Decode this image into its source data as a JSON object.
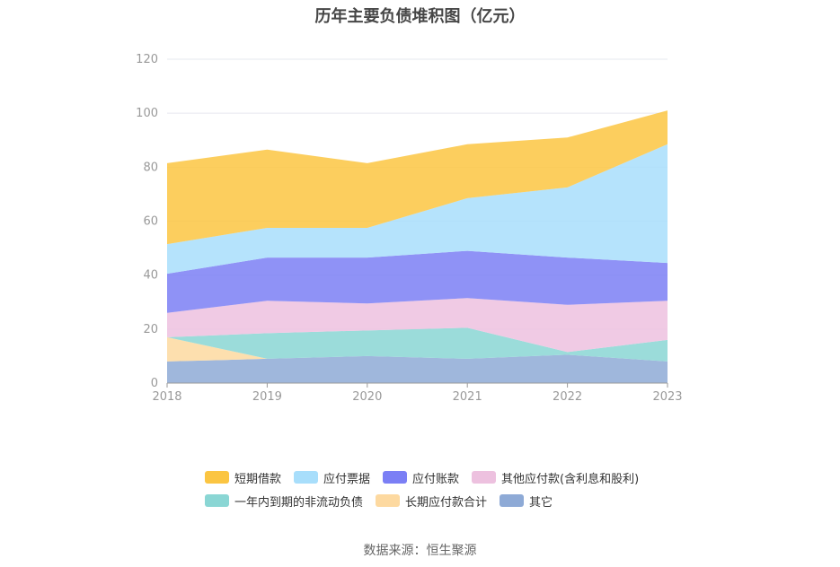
{
  "chart_data": {
    "type": "area",
    "stacked": true,
    "title": "历年主要负债堆积图（亿元）",
    "source": "数据来源：恒生聚源",
    "x": [
      "2018",
      "2019",
      "2020",
      "2021",
      "2022",
      "2023"
    ],
    "ylim": [
      0,
      120
    ],
    "yticks": [
      "0",
      "20",
      "40",
      "60",
      "80",
      "100",
      "120"
    ],
    "grid": true,
    "legend_position": "bottom",
    "series": [
      {
        "name": "其它",
        "color": "#8eaad6",
        "values": [
          8,
          9,
          10,
          9,
          10.5,
          8
        ]
      },
      {
        "name": "长期应付款合计",
        "color": "#fdd9a0",
        "values": [
          9,
          0,
          0,
          0,
          0,
          0
        ]
      },
      {
        "name": "一年内到期的非流动负债",
        "color": "#8ad6d4",
        "values": [
          0,
          9.5,
          9.5,
          11.5,
          1,
          8
        ]
      },
      {
        "name": "其他应付款(含利息和股利)",
        "color": "#edc1df",
        "values": [
          9,
          12,
          10,
          11,
          17.5,
          14.5
        ]
      },
      {
        "name": "应付账款",
        "color": "#7b7ff5",
        "values": [
          14.5,
          16,
          17,
          17.5,
          17.5,
          14
        ]
      },
      {
        "name": "应付票据",
        "color": "#a8defb",
        "values": [
          11,
          11,
          11,
          19.5,
          26,
          44
        ]
      },
      {
        "name": "短期借款",
        "color": "#fbc542",
        "values": [
          30,
          29,
          24,
          20,
          18.5,
          12.5
        ]
      }
    ],
    "legend_order": [
      "短期借款",
      "应付票据",
      "应付账款",
      "其他应付款(含利息和股利)",
      "一年内到期的非流动负债",
      "长期应付款合计",
      "其它"
    ]
  }
}
